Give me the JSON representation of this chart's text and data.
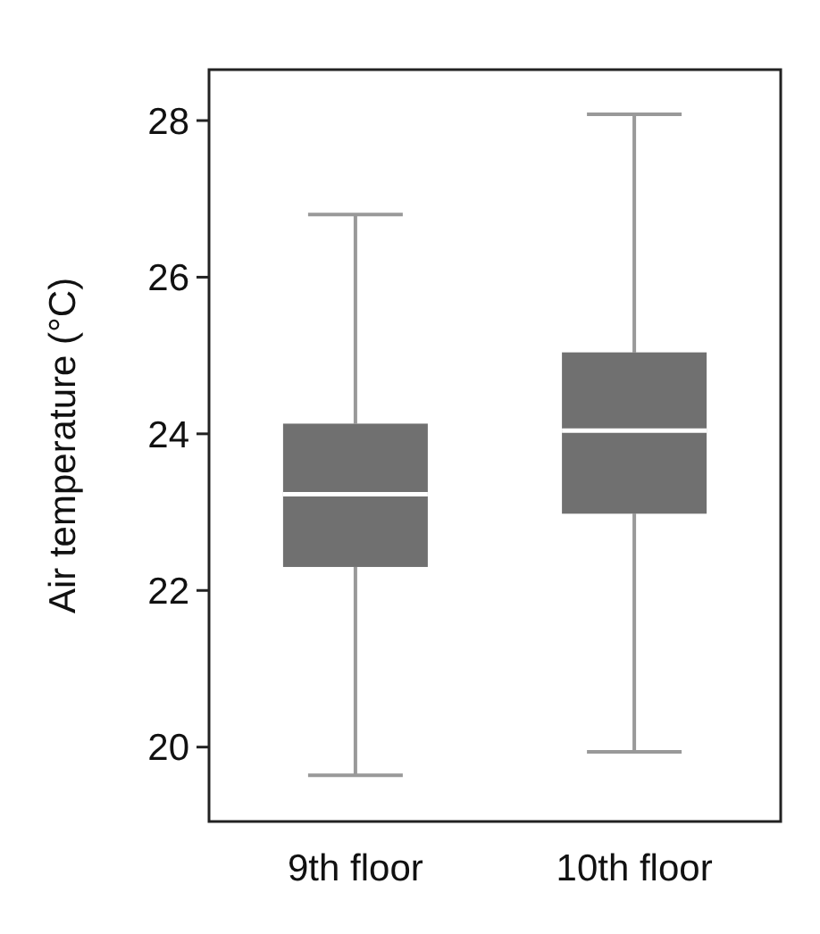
{
  "chart_data": {
    "type": "box",
    "ylabel": "Air temperature (°C)",
    "categories": [
      "9th floor",
      "10th floor"
    ],
    "color": "#707070",
    "ylim": [
      19.05,
      28.65
    ],
    "yticks": [
      20,
      22,
      24,
      26,
      28
    ],
    "grid": false,
    "boxes": [
      {
        "low": 19.64,
        "q1": 22.3,
        "median": 23.23,
        "q3": 24.13,
        "high": 26.8
      },
      {
        "low": 19.94,
        "q1": 22.98,
        "median": 24.04,
        "q3": 25.04,
        "high": 28.08
      }
    ]
  }
}
